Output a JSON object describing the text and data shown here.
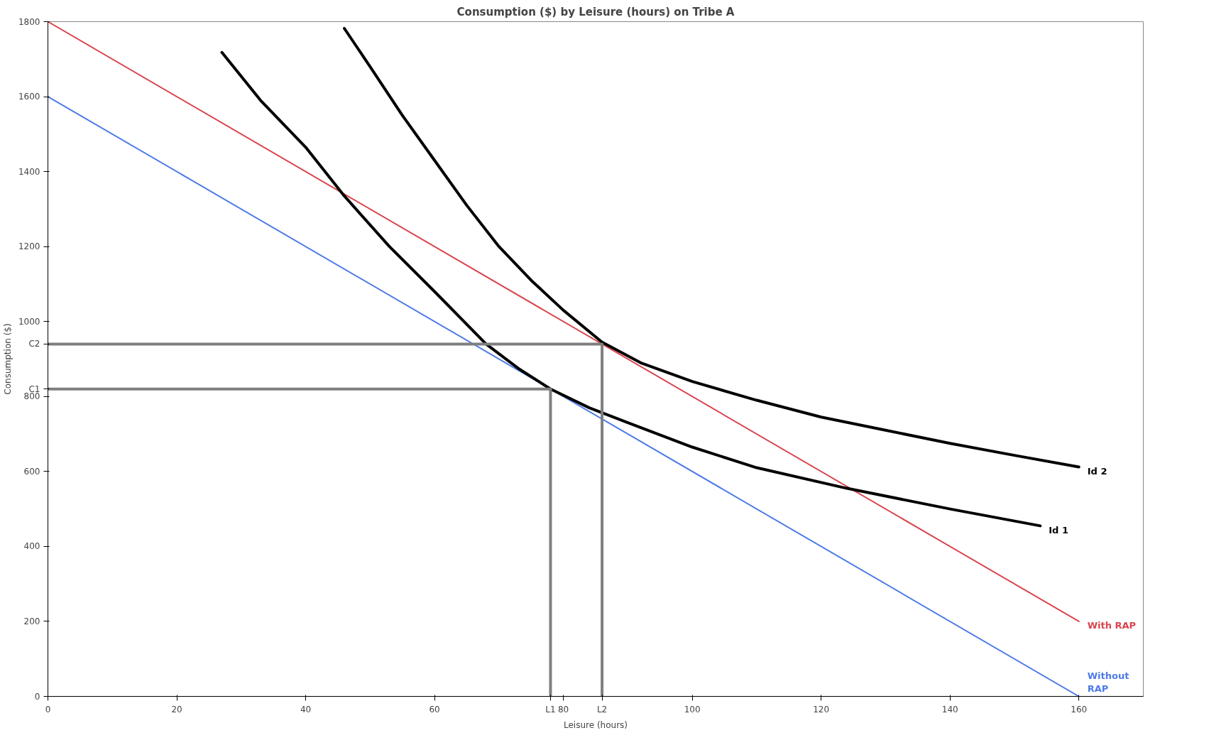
{
  "chart_data": {
    "type": "line",
    "title": "Consumption ($) by Leisure (hours) on Tribe A",
    "xlabel": "Leisure (hours)",
    "ylabel": "Consumption ($)",
    "xlim": [
      0,
      170
    ],
    "ylim": [
      0,
      1800
    ],
    "xticks": [
      0,
      20,
      40,
      60,
      {
        "value": 78,
        "label": "L1"
      },
      80,
      {
        "value": 86,
        "label": "L2"
      },
      100,
      120,
      140,
      160
    ],
    "yticks": [
      0,
      200,
      400,
      600,
      800,
      {
        "value": 820,
        "label": "C1"
      },
      {
        "value": 940,
        "label": "C2"
      },
      1000,
      1200,
      1400,
      1600,
      1800
    ],
    "grid": false,
    "marker": "none",
    "line_style": "solid",
    "series": [
      {
        "name": "Without RAP",
        "color": "#4f7be8",
        "x": [
          0,
          160
        ],
        "values": [
          1600,
          0
        ]
      },
      {
        "name": "With RAP",
        "color": "#d9464f",
        "x": [
          0,
          160
        ],
        "values": [
          1800,
          200
        ]
      },
      {
        "name": "Id 1",
        "color": "#000000",
        "x": [
          27,
          33,
          40,
          46,
          53,
          60,
          68,
          73,
          78,
          84,
          90,
          100,
          110,
          124,
          140,
          154
        ],
        "values": [
          1718,
          1590,
          1465,
          1335,
          1200,
          1080,
          940,
          875,
          820,
          770,
          730,
          665,
          610,
          555,
          500,
          455
        ]
      },
      {
        "name": "Id 2",
        "color": "#000000",
        "x": [
          46,
          50,
          55,
          60,
          65,
          70,
          75,
          80,
          86,
          92,
          100,
          110,
          120,
          130,
          140,
          150,
          160
        ],
        "values": [
          1782,
          1680,
          1550,
          1430,
          1310,
          1200,
          1110,
          1030,
          945,
          890,
          840,
          790,
          745,
          710,
          675,
          643,
          612
        ]
      },
      {
        "color": "#7f7f7f",
        "x": [
          0,
          78,
          78
        ],
        "values": [
          820,
          820,
          0
        ]
      },
      {
        "color": "#7f7f7f",
        "x": [
          0,
          86,
          86
        ],
        "values": [
          940,
          940,
          0
        ]
      }
    ]
  }
}
